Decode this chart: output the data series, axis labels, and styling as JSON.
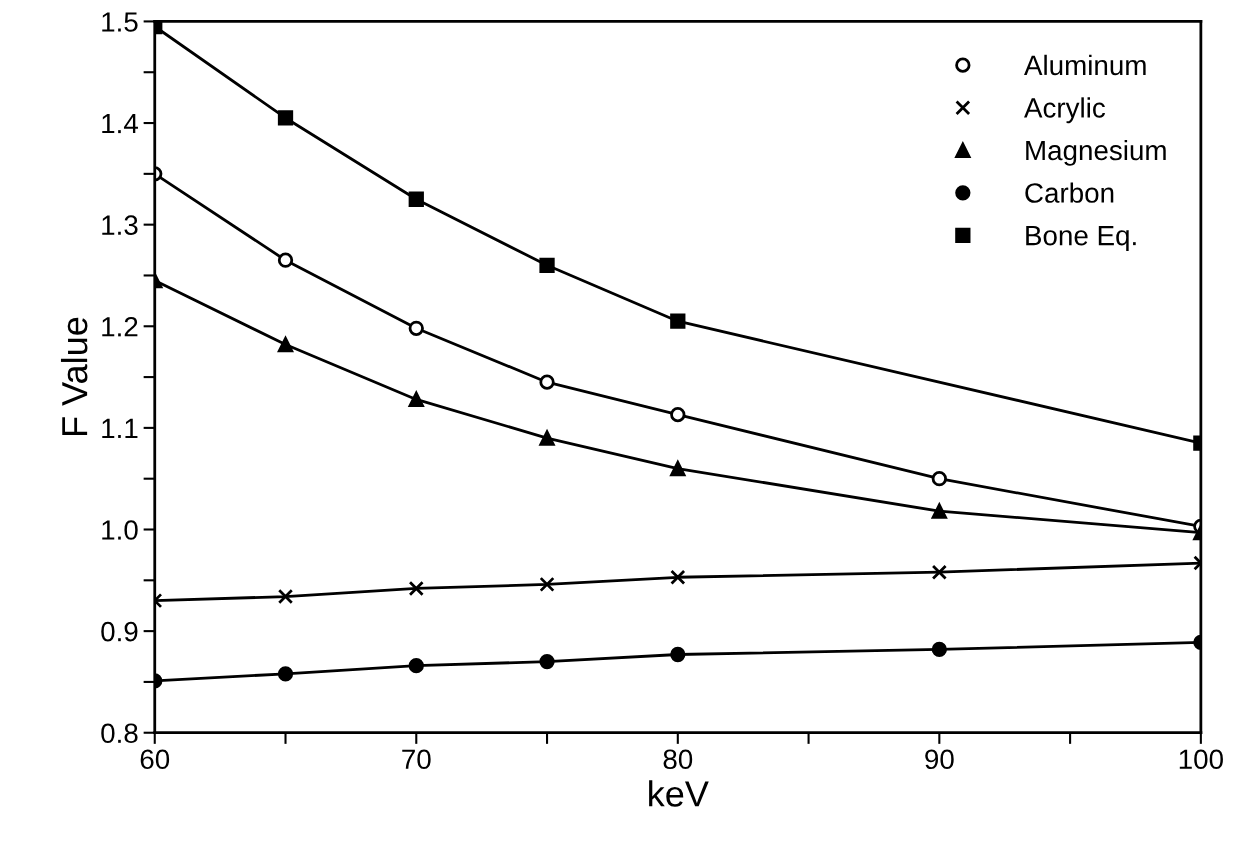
{
  "chart_data": {
    "type": "line",
    "xlabel": "keV",
    "ylabel": "F Value",
    "x": [
      60,
      65,
      70,
      75,
      80,
      90,
      100
    ],
    "series": [
      {
        "name": "Aluminum",
        "color": "#000000",
        "marker": "circle_open",
        "values": [
          1.35,
          1.265,
          1.198,
          1.145,
          1.113,
          1.05,
          1.003
        ]
      },
      {
        "name": "Acrylic",
        "color": "#000000",
        "marker": "cross",
        "values": [
          0.93,
          0.934,
          0.942,
          0.946,
          0.953,
          0.958,
          0.967
        ]
      },
      {
        "name": "Magnesium",
        "color": "#000000",
        "marker": "triangle",
        "values": [
          1.245,
          1.182,
          1.128,
          1.09,
          1.06,
          1.018,
          0.997
        ]
      },
      {
        "name": "Carbon",
        "color": "#000000",
        "marker": "circle",
        "values": [
          0.851,
          0.858,
          0.866,
          0.87,
          0.877,
          0.882,
          0.889
        ]
      },
      {
        "name": "Bone Eq.",
        "color": "#000000",
        "marker": "square",
        "x": [
          60,
          65,
          70,
          75,
          80,
          100
        ],
        "values": [
          1.495,
          1.405,
          1.325,
          1.26,
          1.205,
          1.085
        ]
      }
    ],
    "xlim": [
      60,
      100
    ],
    "xticks": [
      60,
      {
        "value": 65,
        "label": null
      },
      70,
      {
        "value": 75,
        "label": null
      },
      80,
      {
        "value": 85,
        "label": null
      },
      90,
      {
        "value": 95,
        "label": null
      },
      100
    ],
    "ylim": [
      0.8,
      1.5
    ],
    "yticks": [
      0.8,
      {
        "value": 0.85,
        "label": null
      },
      0.9,
      {
        "value": 0.95,
        "label": null
      },
      {
        "value": 1.0,
        "label": "1.0"
      },
      {
        "value": 1.05,
        "label": null
      },
      1.1,
      {
        "value": 1.15,
        "label": null
      },
      1.2,
      {
        "value": 1.25,
        "label": null
      },
      1.3,
      {
        "value": 1.35,
        "label": null
      },
      1.4,
      {
        "value": 1.45,
        "label": null
      },
      1.5
    ],
    "legend": "top right",
    "grid": false,
    "line_style": "solid"
  }
}
